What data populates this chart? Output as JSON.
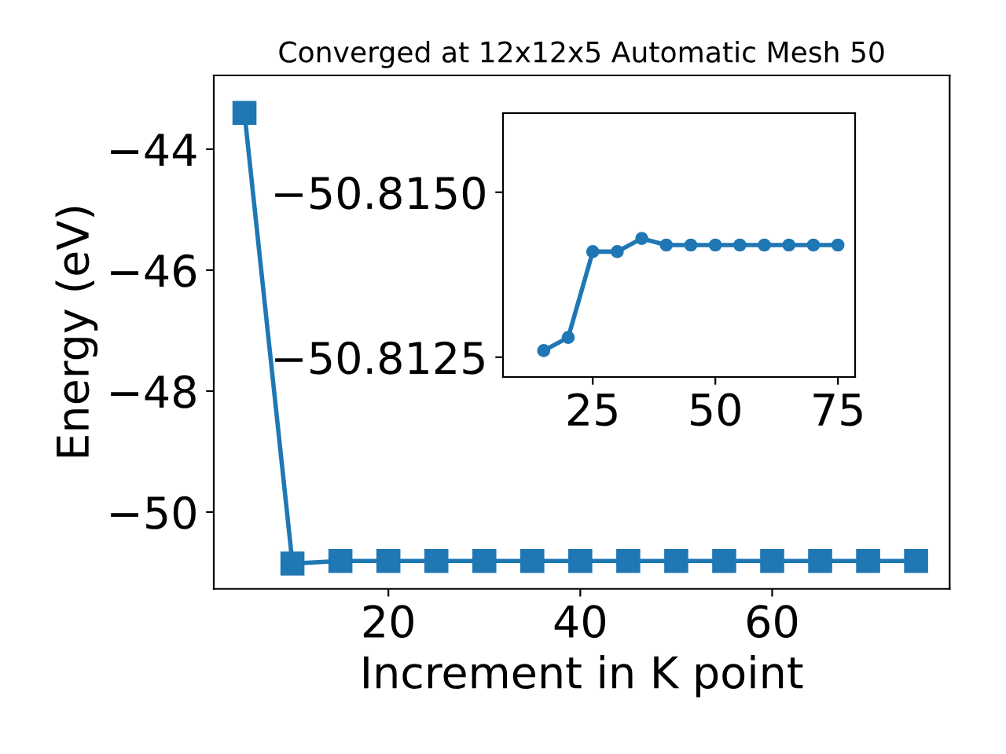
{
  "chart_data": [
    {
      "type": "line",
      "title": "Converged at 12x12x5 Automatic Mesh 50",
      "xlabel": "Increment in K point",
      "ylabel": "Energy (eV)",
      "x": [
        5,
        10,
        15,
        20,
        25,
        30,
        35,
        40,
        45,
        50,
        55,
        60,
        65,
        70,
        75
      ],
      "series": [
        {
          "color": "#1f77b4",
          "values": [
            -43.4,
            -50.85,
            -50.81,
            -50.81,
            -50.81,
            -50.81,
            -50.81,
            -50.81,
            -50.81,
            -50.81,
            -50.81,
            -50.81,
            -50.81,
            -50.81,
            -50.81
          ]
        }
      ],
      "marker": "square",
      "line_style": "solid",
      "grid": false,
      "legend": false,
      "xlim": [
        1.8,
        78.5
      ],
      "ylim": [
        -51.27,
        -42.78
      ],
      "xticks": [
        20,
        40,
        60
      ],
      "yticks": [
        {
          "value": -44,
          "label": "−44"
        },
        {
          "value": -46,
          "label": "−46"
        },
        {
          "value": -48,
          "label": "−48"
        },
        {
          "value": -50,
          "label": "−50"
        }
      ]
    },
    {
      "type": "line",
      "x": [
        15,
        20,
        25,
        30,
        35,
        40,
        45,
        50,
        55,
        60,
        65,
        70,
        75
      ],
      "series": [
        {
          "color": "#1f77b4",
          "values": [
            -50.8126,
            -50.8128,
            -50.8141,
            -50.8141,
            -50.8143,
            -50.8142,
            -50.8142,
            -50.8142,
            -50.8142,
            -50.8142,
            -50.8142,
            -50.8142,
            -50.8142
          ]
        }
      ],
      "marker": "circle",
      "line_style": "solid",
      "grid": false,
      "legend": false,
      "xlim": [
        6.7,
        78.5
      ],
      "ylim": [
        -50.8122,
        -50.8162
      ],
      "xticks": [
        25,
        50,
        75
      ],
      "yticks": [
        {
          "value": -50.815,
          "label": "−50.8150"
        },
        {
          "value": -50.8125,
          "label": "−50.8125"
        }
      ]
    }
  ]
}
